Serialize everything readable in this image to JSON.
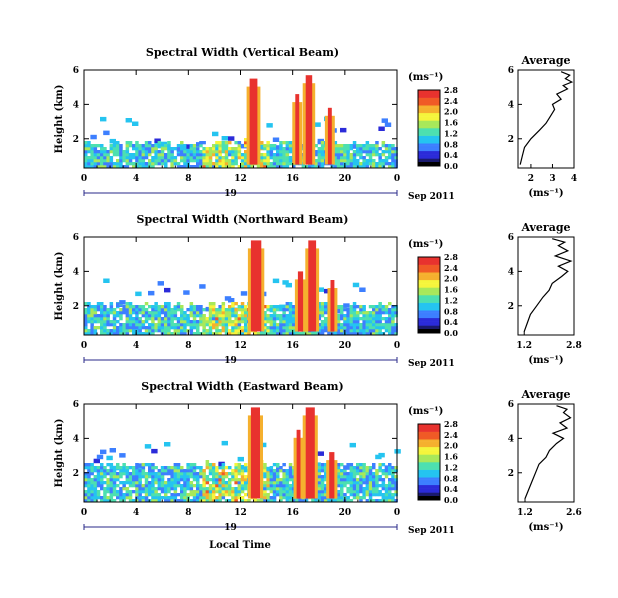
{
  "figure": {
    "shared_xlabel": "Local Time",
    "date_label": "Sep 2011",
    "day_label": "19",
    "average_title": "Average",
    "unit_label": "(ms⁻¹)",
    "height_label": "Height (km)"
  },
  "colorscale": [
    "#1a1a6e",
    "#2b2bd9",
    "#3d7fff",
    "#25c4f0",
    "#4de0b0",
    "#a8e85a",
    "#f5f53c",
    "#f5b02e",
    "#f05a26",
    "#e8322e"
  ],
  "chart_data": [
    {
      "type": "heatmap",
      "title": "Spectral Width (Vertical Beam)",
      "xlabel": "",
      "ylabel": "Height (km)",
      "x_ticks": [
        "0",
        "4",
        "8",
        "12",
        "16",
        "20",
        "0"
      ],
      "y_ticks": [
        "2",
        "4",
        "6"
      ],
      "xlim": [
        0,
        24
      ],
      "ylim": [
        0.3,
        6
      ],
      "colorbar": {
        "label": "(ms⁻¹)",
        "ticks": [
          "0.0",
          "0.4",
          "0.8",
          "1.2",
          "1.6",
          "2.0",
          "2.4",
          "2.8"
        ],
        "range": [
          0,
          2.8
        ]
      },
      "features": {
        "background_top_km": 1.5,
        "convective_cells": [
          {
            "t_start": 12.7,
            "t_end": 13.3,
            "top_km": 5.5,
            "width_ms": 2.8
          },
          {
            "t_start": 16.2,
            "t_end": 16.5,
            "top_km": 4.6,
            "width_ms": 2.8
          },
          {
            "t_start": 17.0,
            "t_end": 17.5,
            "top_km": 5.7,
            "width_ms": 2.8
          },
          {
            "t_start": 18.7,
            "t_end": 19.0,
            "top_km": 3.8,
            "width_ms": 2.8
          }
        ]
      },
      "average_profile": {
        "title": "Average",
        "xlabel": "(ms⁻¹)",
        "x_ticks": [
          "2",
          "3",
          "4"
        ],
        "xlim": [
          1.4,
          4.0
        ],
        "y_ticks": [
          "2",
          "4",
          "6"
        ],
        "ylim": [
          0.3,
          6
        ],
        "x": [
          1.5,
          1.6,
          1.7,
          2.0,
          2.4,
          2.7,
          2.9,
          3.1,
          3.0,
          3.4,
          3.2,
          3.7,
          3.5,
          3.9,
          3.6,
          3.8,
          3.4
        ],
        "y": [
          0.5,
          1.0,
          1.5,
          2.0,
          2.5,
          2.9,
          3.3,
          3.7,
          4.0,
          4.3,
          4.6,
          4.9,
          5.1,
          5.3,
          5.5,
          5.7,
          5.9
        ]
      }
    },
    {
      "type": "heatmap",
      "title": "Spectral Width (Northward Beam)",
      "xlabel": "",
      "ylabel": "Height (km)",
      "x_ticks": [
        "0",
        "4",
        "8",
        "12",
        "16",
        "20",
        "0"
      ],
      "y_ticks": [
        "2",
        "4",
        "6"
      ],
      "xlim": [
        0,
        24
      ],
      "ylim": [
        0.3,
        6
      ],
      "colorbar": {
        "label": "(ms⁻¹)",
        "ticks": [
          "0.0",
          "0.4",
          "0.8",
          "1.2",
          "1.6",
          "2.0",
          "2.4",
          "2.8"
        ],
        "range": [
          0,
          2.8
        ]
      },
      "features": {
        "background_top_km": 1.8,
        "convective_cells": [
          {
            "t_start": 12.8,
            "t_end": 13.6,
            "top_km": 5.8,
            "width_ms": 2.8
          },
          {
            "t_start": 16.4,
            "t_end": 16.8,
            "top_km": 4.0,
            "width_ms": 2.8
          },
          {
            "t_start": 17.2,
            "t_end": 17.8,
            "top_km": 5.8,
            "width_ms": 2.8
          },
          {
            "t_start": 18.9,
            "t_end": 19.2,
            "top_km": 3.5,
            "width_ms": 2.8
          }
        ]
      },
      "average_profile": {
        "title": "Average",
        "xlabel": "(ms⁻¹)",
        "x_ticks": [
          "1.2",
          "2.8"
        ],
        "xlim": [
          1.0,
          2.8
        ],
        "y_ticks": [
          "2",
          "4",
          "6"
        ],
        "ylim": [
          0.3,
          6
        ],
        "x": [
          1.2,
          1.3,
          1.4,
          1.6,
          1.8,
          2.0,
          2.1,
          2.4,
          2.6,
          2.3,
          2.7,
          2.2,
          2.6,
          2.3,
          2.5,
          2.1
        ],
        "y": [
          0.5,
          1.0,
          1.5,
          2.0,
          2.5,
          2.9,
          3.3,
          3.7,
          4.0,
          4.3,
          4.6,
          4.9,
          5.2,
          5.5,
          5.7,
          5.9
        ]
      }
    },
    {
      "type": "heatmap",
      "title": "Spectral Width (Eastward Beam)",
      "xlabel": "Local Time",
      "ylabel": "Height (km)",
      "x_ticks": [
        "0",
        "4",
        "8",
        "12",
        "16",
        "20",
        "0"
      ],
      "y_ticks": [
        "2",
        "4",
        "6"
      ],
      "xlim": [
        0,
        24
      ],
      "ylim": [
        0.3,
        6
      ],
      "colorbar": {
        "label": "(ms⁻¹)",
        "ticks": [
          "0.0",
          "0.4",
          "0.8",
          "1.2",
          "1.6",
          "2.0",
          "2.4",
          "2.8"
        ],
        "range": [
          0,
          2.8
        ]
      },
      "features": {
        "background_top_km": 2.2,
        "convective_cells": [
          {
            "t_start": 12.8,
            "t_end": 13.5,
            "top_km": 5.8,
            "width_ms": 2.8
          },
          {
            "t_start": 16.3,
            "t_end": 16.6,
            "top_km": 4.5,
            "width_ms": 2.8
          },
          {
            "t_start": 17.0,
            "t_end": 17.7,
            "top_km": 5.8,
            "width_ms": 2.8
          },
          {
            "t_start": 18.8,
            "t_end": 19.2,
            "top_km": 3.2,
            "width_ms": 2.8
          }
        ]
      },
      "average_profile": {
        "title": "Average",
        "xlabel": "(ms⁻¹)",
        "x_ticks": [
          "1.2",
          "2.6"
        ],
        "xlim": [
          1.0,
          2.6
        ],
        "y_ticks": [
          "2",
          "4",
          "6"
        ],
        "ylim": [
          0.3,
          6
        ],
        "x": [
          1.2,
          1.3,
          1.4,
          1.5,
          1.6,
          1.8,
          1.9,
          2.1,
          2.3,
          2.0,
          2.4,
          2.2,
          2.5,
          2.3,
          2.4,
          2.1
        ],
        "y": [
          0.5,
          1.0,
          1.5,
          2.0,
          2.5,
          2.9,
          3.3,
          3.7,
          4.0,
          4.3,
          4.6,
          4.9,
          5.2,
          5.5,
          5.7,
          5.9
        ]
      }
    }
  ]
}
